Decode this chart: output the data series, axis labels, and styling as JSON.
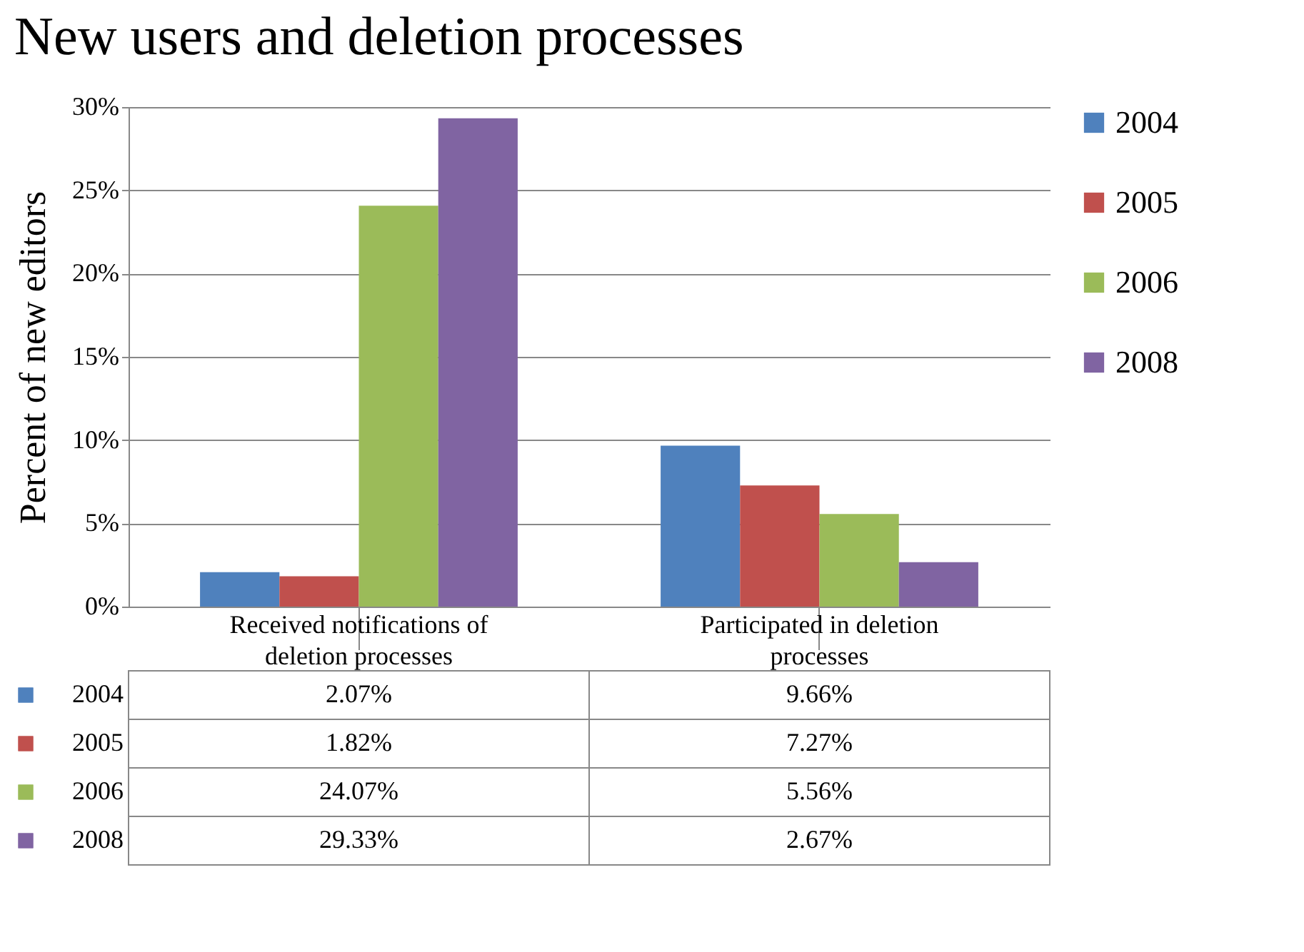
{
  "chart_data": {
    "type": "bar",
    "title": "New users and deletion processes",
    "ylabel": "Percent of new editors",
    "categories": [
      "Received notifications of deletion processes",
      "Participated in deletion processes"
    ],
    "series": [
      {
        "name": "2004",
        "color": "#4f81bd",
        "values": [
          2.07,
          9.66
        ],
        "value_labels": [
          "2.07%",
          "9.66%"
        ]
      },
      {
        "name": "2005",
        "color": "#c0504d",
        "values": [
          1.82,
          7.27
        ],
        "value_labels": [
          "1.82%",
          "7.27%"
        ]
      },
      {
        "name": "2006",
        "color": "#9bbb59",
        "values": [
          24.07,
          5.56
        ],
        "value_labels": [
          "24.07%",
          "5.56%"
        ]
      },
      {
        "name": "2008",
        "color": "#8064a2",
        "values": [
          29.33,
          2.67
        ],
        "value_labels": [
          "29.33%",
          "2.67%"
        ]
      }
    ],
    "ylim": [
      0,
      30
    ],
    "yticks": [
      {
        "value": 0,
        "label": "0%"
      },
      {
        "value": 5,
        "label": "5%"
      },
      {
        "value": 10,
        "label": "10%"
      },
      {
        "value": 15,
        "label": "15%"
      },
      {
        "value": 20,
        "label": "20%"
      },
      {
        "value": 25,
        "label": "25%"
      },
      {
        "value": 30,
        "label": "30%"
      }
    ],
    "grid": "y",
    "legend": "right"
  }
}
